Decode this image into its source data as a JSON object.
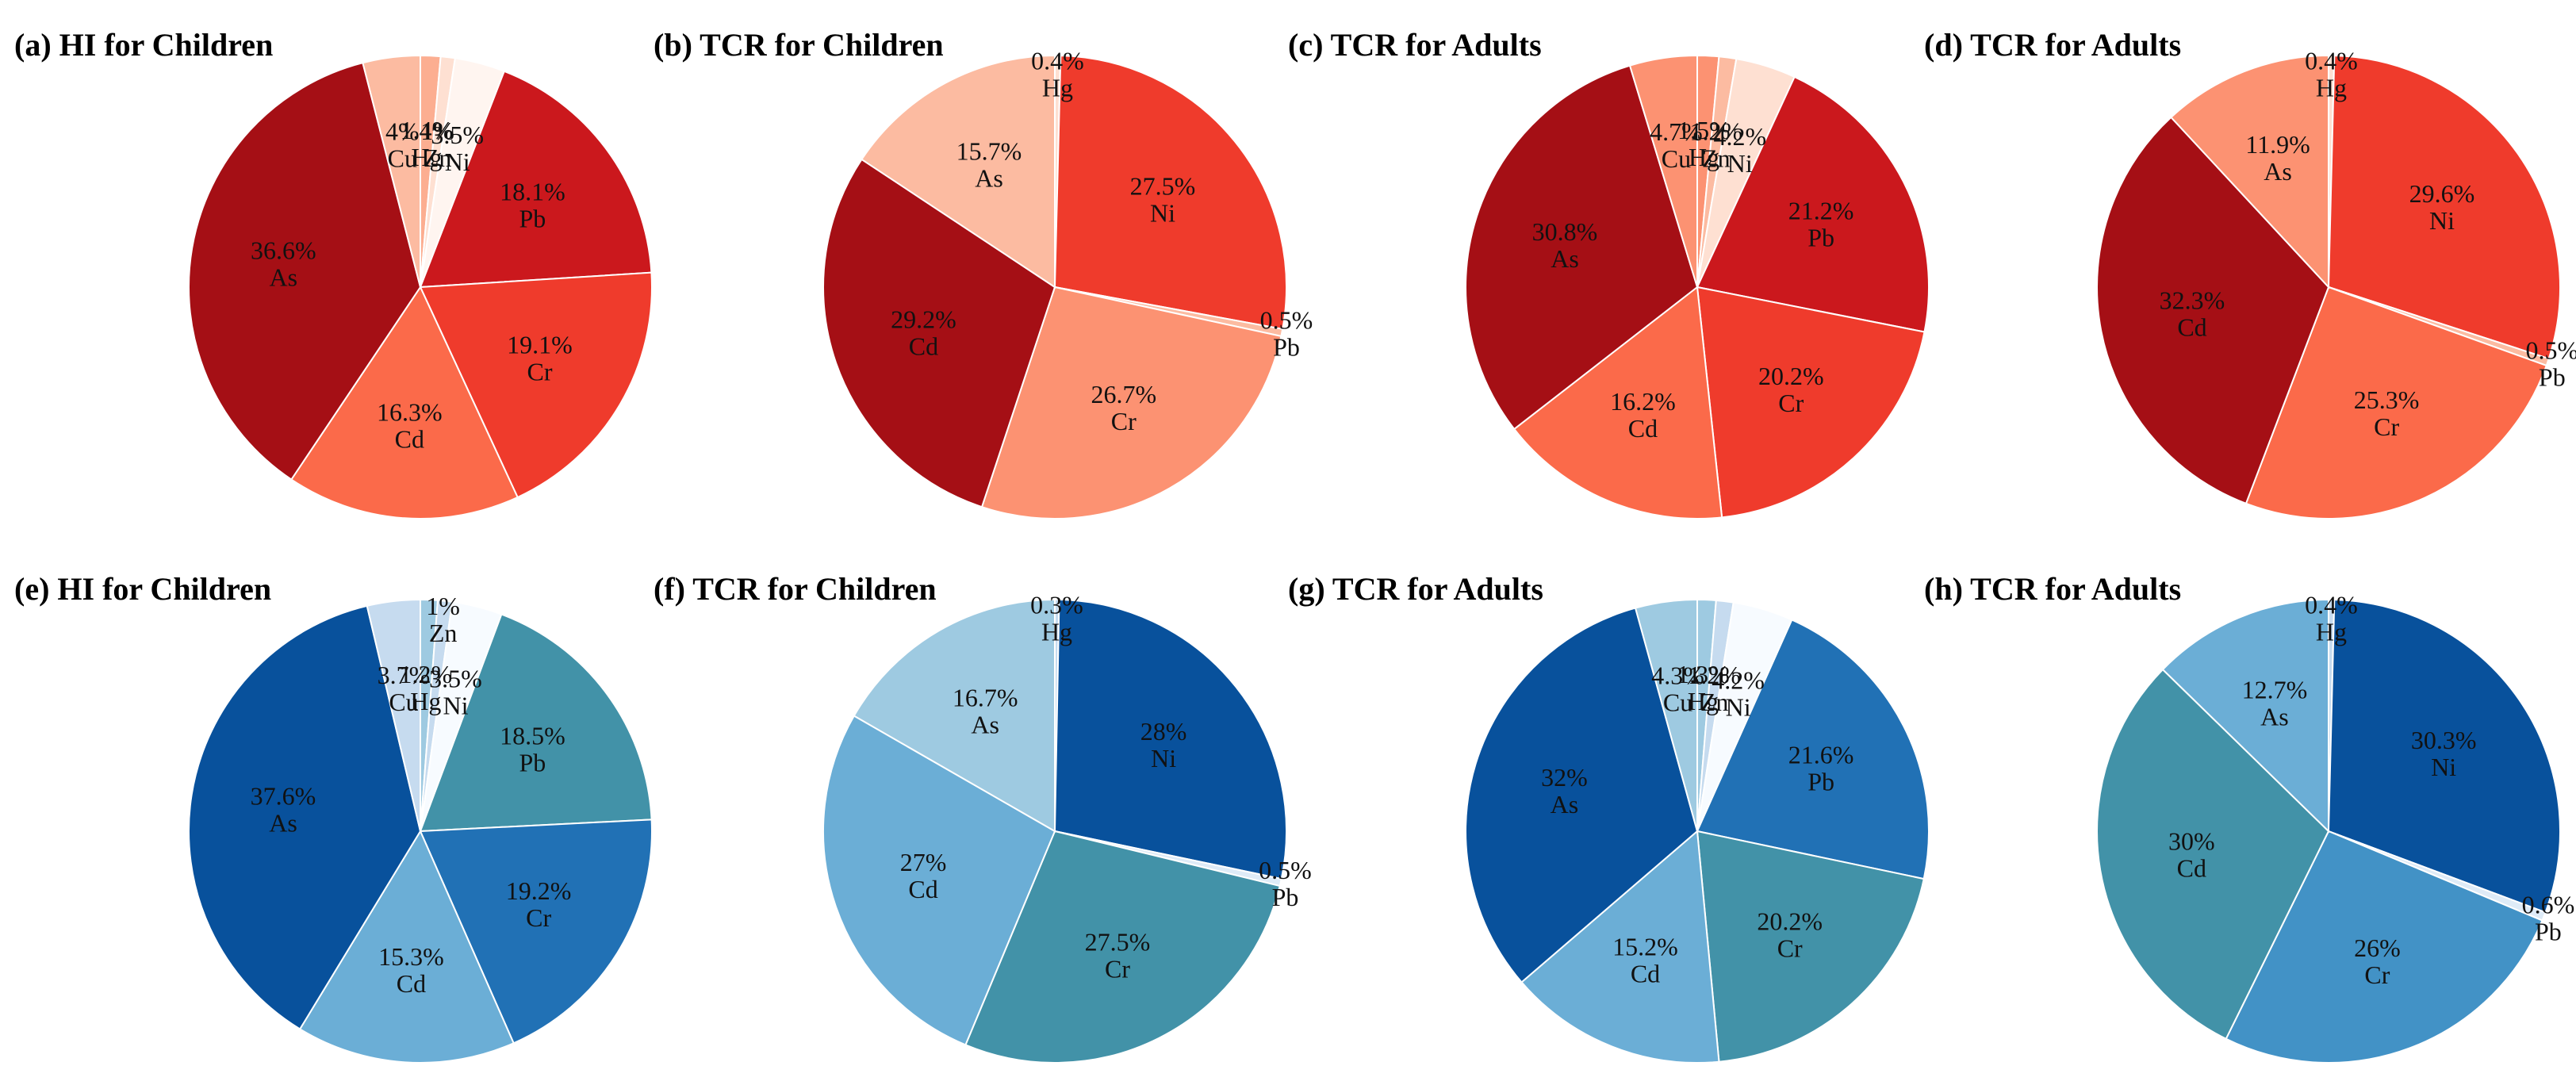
{
  "chart_data": [
    {
      "type": "pie",
      "title": "(a) HI for Children",
      "theme": "red",
      "categories": [
        "Hg",
        "Zn",
        "Ni",
        "Pb",
        "Cr",
        "Cd",
        "As",
        "Cu"
      ],
      "values": [
        1.4,
        1,
        3.5,
        18.1,
        19.1,
        16.3,
        36.6,
        4
      ],
      "labels": [
        "1.4%",
        "1%",
        "3.5%",
        "18.1%",
        "19.1%",
        "16.3%",
        "36.6%",
        "4%"
      ],
      "colors": [
        "#fcae91",
        "#fee0d2",
        "#fff5f0",
        "#cb181d",
        "#ef3b2c",
        "#fb6a4a",
        "#a50f15",
        "#fcbba1"
      ]
    },
    {
      "type": "pie",
      "title": "(b)  TCR for Children",
      "theme": "red",
      "categories": [
        "Hg",
        "Ni",
        "Pb",
        "Cr",
        "Cd",
        "As"
      ],
      "values": [
        0.4,
        27.5,
        0.5,
        26.7,
        29.2,
        15.7
      ],
      "labels": [
        "0.4%",
        "27.5%",
        "0.5%",
        "26.7%",
        "29.2%",
        "15.7%"
      ],
      "colors": [
        "#fee0d2",
        "#ef3b2c",
        "#fcbba1",
        "#fc9272",
        "#a50f15",
        "#fcbba1"
      ]
    },
    {
      "type": "pie",
      "title": "(c)  TCR for Adults",
      "theme": "red",
      "categories": [
        "Hg",
        "Zn",
        "Ni",
        "Pb",
        "Cr",
        "Cd",
        "As",
        "Cu"
      ],
      "values": [
        1.5,
        1.2,
        4.2,
        21.2,
        20.2,
        16.2,
        30.8,
        4.7
      ],
      "labels": [
        "1.5%",
        "1.2%",
        "4.2%",
        "21.2%",
        "20.2%",
        "16.2%",
        "30.8%",
        "4.7%"
      ],
      "colors": [
        "#fc9272",
        "#fcbba1",
        "#fee0d2",
        "#cb181d",
        "#ef3b2c",
        "#fb6a4a",
        "#a50f15",
        "#fc9272"
      ]
    },
    {
      "type": "pie",
      "title": "(d)  TCR for Adults",
      "theme": "red",
      "categories": [
        "Hg",
        "Ni",
        "Pb",
        "Cr",
        "Cd",
        "As"
      ],
      "values": [
        0.4,
        29.6,
        0.5,
        25.3,
        32.3,
        11.9
      ],
      "labels": [
        "0.4%",
        "29.6%",
        "0.5%",
        "25.3%",
        "32.3%",
        "11.9%"
      ],
      "colors": [
        "#fee0d2",
        "#ef3b2c",
        "#fcbba1",
        "#fb6a4a",
        "#a50f15",
        "#fc9272"
      ]
    },
    {
      "type": "pie",
      "title": "(e)  HI for Children",
      "theme": "blue",
      "categories": [
        "Hg",
        "Zn",
        "Ni",
        "Pb",
        "Cr",
        "Cd",
        "As",
        "Cu"
      ],
      "values": [
        1.2,
        1,
        3.5,
        18.5,
        19.2,
        15.3,
        37.6,
        3.7
      ],
      "labels": [
        "1.2%",
        "1%",
        "3.5%",
        "18.5%",
        "19.2%",
        "15.3%",
        "37.6%",
        "3.7%"
      ],
      "colors": [
        "#9ecae1",
        "#c6dbef",
        "#f7fbff",
        "#4292a8",
        "#2171b5",
        "#6baed6",
        "#08519c",
        "#c6dbef"
      ]
    },
    {
      "type": "pie",
      "title": "(f)  TCR for Children",
      "theme": "blue",
      "categories": [
        "Hg",
        "Ni",
        "Pb",
        "Cr",
        "Cd",
        "As"
      ],
      "values": [
        0.3,
        28,
        0.5,
        27.5,
        27,
        16.7
      ],
      "labels": [
        "0.3%",
        "28%",
        "0.5%",
        "27.5%",
        "27%",
        "16.7%"
      ],
      "colors": [
        "#c6dbef",
        "#08519c",
        "#deebf7",
        "#4292a8",
        "#6baed6",
        "#9ecae1"
      ]
    },
    {
      "type": "pie",
      "title": "(g)  TCR for Adults",
      "theme": "blue",
      "categories": [
        "Hg",
        "Zn",
        "Ni",
        "Pb",
        "Cr",
        "Cd",
        "As",
        "Cu"
      ],
      "values": [
        1.3,
        1.2,
        4.2,
        21.6,
        20.2,
        15.2,
        32,
        4.3
      ],
      "labels": [
        "1.3%",
        "1.2%",
        "4.2%",
        "21.6%",
        "20.2%",
        "15.2%",
        "32%",
        "4.3%"
      ],
      "colors": [
        "#9ecae1",
        "#c6dbef",
        "#f7fbff",
        "#2171b5",
        "#4292a8",
        "#6baed6",
        "#08519c",
        "#9ecae1"
      ]
    },
    {
      "type": "pie",
      "title": "(h)  TCR for Adults",
      "theme": "blue",
      "categories": [
        "Hg",
        "Ni",
        "Pb",
        "Cr",
        "Cd",
        "As"
      ],
      "values": [
        0.4,
        30.3,
        0.6,
        26,
        30,
        12.7
      ],
      "labels": [
        "0.4%",
        "30.3%",
        "0.6%",
        "26%",
        "30%",
        "12.7%"
      ],
      "colors": [
        "#c6dbef",
        "#08519c",
        "#deebf7",
        "#4292c6",
        "#4292a8",
        "#6baed6"
      ]
    }
  ]
}
